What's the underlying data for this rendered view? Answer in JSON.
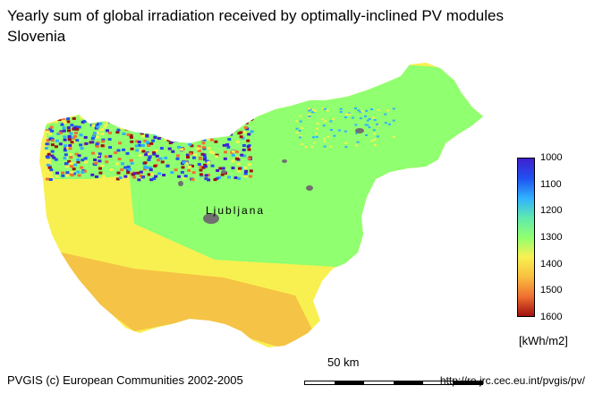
{
  "header": {
    "title": "Yearly sum of global irradiation received by optimally-inclined PV modules",
    "subtitle": "Slovenia"
  },
  "map": {
    "city_label": "Ljubljana",
    "colors": {
      "class_1000": "#4020d0",
      "class_1100": "#2050f0",
      "class_1200": "#30b0ff",
      "class_1300": "#90ff70",
      "class_1400": "#f8f050",
      "class_1500": "#f07030",
      "class_1600": "#a01010",
      "urban": "#707070"
    }
  },
  "legend": {
    "values": [
      "1000",
      "1100",
      "1200",
      "1300",
      "1400",
      "1500",
      "1600"
    ],
    "gradient": [
      "#4020d0",
      "#2050f0",
      "#30b0ff",
      "#60e8b0",
      "#90ff70",
      "#f8f050",
      "#f8c040",
      "#f07030",
      "#a01010"
    ],
    "unit": "[kWh/m2]"
  },
  "scale": {
    "label": "50 km"
  },
  "footer": {
    "credit": "PVGIS (c) European Communities 2002-2005",
    "url": "http://re.jrc.cec.eu.int/pvgis/pv/"
  }
}
